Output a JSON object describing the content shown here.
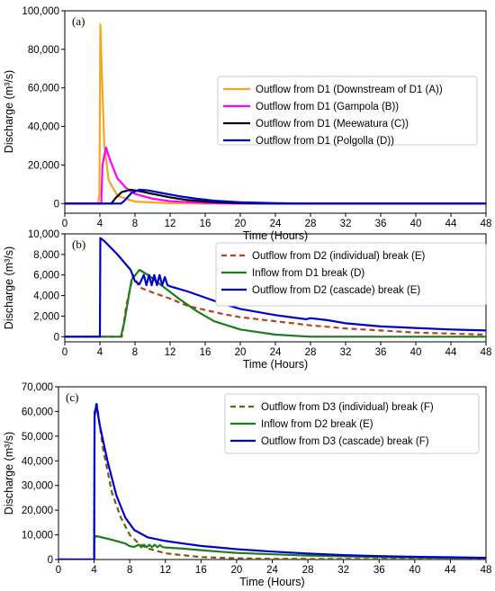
{
  "chart_data": [
    {
      "type": "line",
      "panel_label": "(a)",
      "xlabel": "Time (Hours)",
      "ylabel": "Discharge (m³/s)",
      "xlim": [
        0,
        48
      ],
      "ylim": [
        -5000,
        100000
      ],
      "xticks": [
        "0",
        "4",
        "8",
        "12",
        "16",
        "20",
        "24",
        "28",
        "32",
        "36",
        "40",
        "44",
        "48"
      ],
      "yticks": [
        "0",
        "20,000",
        "40,000",
        "60,000",
        "80,000",
        "100,000"
      ],
      "legend_position": "center-right",
      "series": [
        {
          "name": "Outflow from D1 (Downstream of D1 (A))",
          "color": "#f5a623",
          "dash": "solid",
          "points": [
            [
              0,
              0
            ],
            [
              3.8,
              0
            ],
            [
              3.95,
              5000
            ],
            [
              4.05,
              93000
            ],
            [
              4.2,
              70000
            ],
            [
              4.5,
              30000
            ],
            [
              5,
              12000
            ],
            [
              6,
              4000
            ],
            [
              8,
              1000
            ],
            [
              12,
              200
            ],
            [
              16,
              0
            ],
            [
              48,
              0
            ]
          ]
        },
        {
          "name": "Outflow from D1 (Gampola (B))",
          "color": "#ff00ff",
          "dash": "solid",
          "points": [
            [
              0,
              0
            ],
            [
              4.15,
              0
            ],
            [
              4.3,
              20000
            ],
            [
              4.7,
              29000
            ],
            [
              5.2,
              22000
            ],
            [
              6,
              13000
            ],
            [
              7,
              8000
            ],
            [
              8,
              5000
            ],
            [
              10,
              2500
            ],
            [
              12,
              1200
            ],
            [
              16,
              300
            ],
            [
              20,
              0
            ],
            [
              48,
              0
            ]
          ]
        },
        {
          "name": "Outflow from D1 (Meewatura (C))",
          "color": "#000000",
          "dash": "solid",
          "points": [
            [
              0,
              0
            ],
            [
              5.3,
              0
            ],
            [
              5.8,
              3000
            ],
            [
              6.5,
              6000
            ],
            [
              7.5,
              7200
            ],
            [
              8.5,
              6500
            ],
            [
              10,
              5000
            ],
            [
              12,
              3200
            ],
            [
              14,
              1800
            ],
            [
              16,
              1000
            ],
            [
              20,
              200
            ],
            [
              24,
              0
            ],
            [
              48,
              0
            ]
          ]
        },
        {
          "name": "Outflow from D1 (Polgolla (D))",
          "color": "#0000cc",
          "dash": "solid",
          "points": [
            [
              0,
              0
            ],
            [
              6.4,
              0
            ],
            [
              6.8,
              1500
            ],
            [
              7.6,
              5500
            ],
            [
              8.5,
              7200
            ],
            [
              9.5,
              6800
            ],
            [
              11,
              5500
            ],
            [
              13,
              3800
            ],
            [
              15,
              2500
            ],
            [
              17,
              1500
            ],
            [
              20,
              700
            ],
            [
              24,
              200
            ],
            [
              28,
              0
            ],
            [
              48,
              0
            ]
          ]
        }
      ]
    },
    {
      "type": "line",
      "panel_label": "(b)",
      "xlabel": "Time (Hours)",
      "ylabel": "Discharge (m³/s)",
      "xlim": [
        0,
        48
      ],
      "ylim": [
        -500,
        10000
      ],
      "xticks": [
        "0",
        "4",
        "8",
        "12",
        "16",
        "20",
        "24",
        "28",
        "32",
        "36",
        "40",
        "44",
        "48"
      ],
      "yticks": [
        "0",
        "2,000",
        "4,000",
        "6,000",
        "8,000",
        "10,000"
      ],
      "legend_position": "top-right",
      "series": [
        {
          "name": "Outflow from D2 (individual) break (E)",
          "color": "#b5451b",
          "dash": "dashed",
          "points": [
            [
              0,
              0
            ],
            [
              6.5,
              0
            ],
            [
              7,
              3000
            ],
            [
              7.8,
              6000
            ],
            [
              8.5,
              4800
            ],
            [
              10,
              4300
            ],
            [
              12,
              3700
            ],
            [
              14,
              3000
            ],
            [
              16,
              2600
            ],
            [
              18,
              2200
            ],
            [
              20,
              1900
            ],
            [
              24,
              1500
            ],
            [
              28,
              1100
            ],
            [
              32,
              800
            ],
            [
              36,
              600
            ],
            [
              40,
              400
            ],
            [
              44,
              300
            ],
            [
              48,
              200
            ]
          ]
        },
        {
          "name": "Inflow from D1 break (D)",
          "color": "#1e7b1e",
          "dash": "solid",
          "points": [
            [
              0,
              0
            ],
            [
              6.4,
              0
            ],
            [
              6.8,
              1500
            ],
            [
              7.6,
              5500
            ],
            [
              8.5,
              6500
            ],
            [
              9.5,
              6000
            ],
            [
              11,
              5000
            ],
            [
              13,
              3700
            ],
            [
              15,
              2500
            ],
            [
              17,
              1500
            ],
            [
              20,
              700
            ],
            [
              24,
              200
            ],
            [
              28,
              0
            ],
            [
              48,
              0
            ]
          ]
        },
        {
          "name": "Outflow from D2 (cascade) break (E)",
          "color": "#0000cc",
          "dash": "solid",
          "points": [
            [
              0,
              0
            ],
            [
              4,
              0
            ],
            [
              4.05,
              9600
            ],
            [
              4.5,
              9300
            ],
            [
              6,
              8000
            ],
            [
              7.5,
              6500
            ],
            [
              8,
              5400
            ],
            [
              8.5,
              5100
            ],
            [
              9,
              6000
            ],
            [
              9.3,
              5000
            ],
            [
              9.6,
              6000
            ],
            [
              9.9,
              5000
            ],
            [
              10.2,
              6000
            ],
            [
              10.5,
              5000
            ],
            [
              10.8,
              6000
            ],
            [
              11.1,
              5000
            ],
            [
              11.4,
              5800
            ],
            [
              11.7,
              5000
            ],
            [
              12,
              4900
            ],
            [
              14,
              4400
            ],
            [
              16,
              3800
            ],
            [
              18,
              3200
            ],
            [
              20,
              2700
            ],
            [
              24,
              2100
            ],
            [
              27.5,
              1700
            ],
            [
              28,
              1800
            ],
            [
              30,
              1600
            ],
            [
              32,
              1300
            ],
            [
              36,
              1000
            ],
            [
              40,
              850
            ],
            [
              44,
              700
            ],
            [
              48,
              600
            ]
          ]
        }
      ]
    },
    {
      "type": "line",
      "panel_label": "(c)",
      "xlabel": "Time (Hours)",
      "ylabel": "Discharge (m³/s)",
      "xlim": [
        0,
        48
      ],
      "ylim": [
        0,
        70000
      ],
      "xticks": [
        "0",
        "4",
        "8",
        "12",
        "16",
        "20",
        "24",
        "28",
        "32",
        "36",
        "40",
        "44",
        "48"
      ],
      "yticks": [
        "0",
        "10,000",
        "20,000",
        "30,000",
        "40,000",
        "50,000",
        "60,000",
        "70,000"
      ],
      "legend_position": "top-right",
      "series": [
        {
          "name": "Outflow from D3 (individual) break (F)",
          "color": "#7a5a10",
          "dash": "dashed",
          "points": [
            [
              0,
              0
            ],
            [
              4,
              0
            ],
            [
              4.05,
              60000
            ],
            [
              4.3,
              63000
            ],
            [
              5,
              45000
            ],
            [
              6,
              27000
            ],
            [
              7,
              17000
            ],
            [
              8,
              10000
            ],
            [
              9,
              6500
            ],
            [
              10,
              4500
            ],
            [
              12,
              2500
            ],
            [
              16,
              1000
            ],
            [
              20,
              500
            ],
            [
              24,
              300
            ],
            [
              48,
              100
            ]
          ]
        },
        {
          "name": "Inflow from D2 break (E)",
          "color": "#1e7b1e",
          "dash": "solid",
          "points": [
            [
              0,
              0
            ],
            [
              4,
              0
            ],
            [
              4.05,
              9600
            ],
            [
              4.5,
              9300
            ],
            [
              6,
              8000
            ],
            [
              7.5,
              6500
            ],
            [
              8,
              5400
            ],
            [
              8.5,
              5100
            ],
            [
              9,
              6000
            ],
            [
              9.3,
              5000
            ],
            [
              9.6,
              6000
            ],
            [
              9.9,
              5000
            ],
            [
              10.2,
              6000
            ],
            [
              10.5,
              5000
            ],
            [
              10.8,
              6000
            ],
            [
              11.1,
              5000
            ],
            [
              11.4,
              5800
            ],
            [
              11.7,
              5000
            ],
            [
              12,
              4900
            ],
            [
              14,
              4400
            ],
            [
              16,
              3800
            ],
            [
              18,
              3200
            ],
            [
              20,
              2700
            ],
            [
              24,
              2100
            ],
            [
              28,
              1600
            ],
            [
              32,
              1300
            ],
            [
              36,
              1000
            ],
            [
              40,
              850
            ],
            [
              44,
              700
            ],
            [
              48,
              600
            ]
          ]
        },
        {
          "name": "Outflow from D3 (cascade) break (F)",
          "color": "#0000cc",
          "dash": "solid",
          "points": [
            [
              0,
              0
            ],
            [
              4,
              0
            ],
            [
              4.05,
              58000
            ],
            [
              4.25,
              63000
            ],
            [
              4.6,
              55000
            ],
            [
              5.5,
              40000
            ],
            [
              6.5,
              26000
            ],
            [
              7.5,
              17000
            ],
            [
              8.5,
              12000
            ],
            [
              10,
              9000
            ],
            [
              12,
              7500
            ],
            [
              14,
              6500
            ],
            [
              16,
              5500
            ],
            [
              20,
              4200
            ],
            [
              24,
              3200
            ],
            [
              28,
              2400
            ],
            [
              32,
              1800
            ],
            [
              36,
              1400
            ],
            [
              40,
              1100
            ],
            [
              44,
              900
            ],
            [
              48,
              700
            ]
          ]
        }
      ]
    }
  ]
}
